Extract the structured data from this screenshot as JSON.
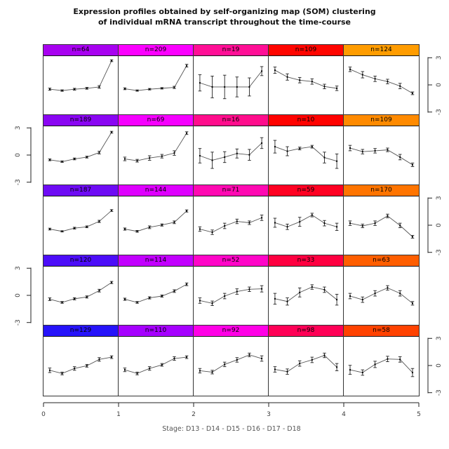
{
  "title": {
    "line1": "Expression profiles obtained by self-organizing map (SOM) clustering",
    "line2": "of individual mRNA transcript throughout the time-course"
  },
  "axes": {
    "x": {
      "tick_labels": [
        "0",
        "1",
        "2",
        "3",
        "4",
        "5"
      ],
      "label": "Stage: D13 - D14 - D15 - D16 - D17 - D18"
    },
    "y": {
      "tick_labels": [
        "3",
        "0",
        "-3"
      ],
      "tick_values": [
        3,
        0,
        -3
      ],
      "left_axis_rows": [
        2,
        4
      ],
      "right_axis_rows": [
        1,
        3,
        5
      ]
    }
  },
  "chart_data": {
    "type": "line",
    "title": "Expression profiles obtained by self-organizing map (SOM) clustering of individual mRNA transcript throughout the time-course",
    "xlabel": "Stage: D13 - D14 - D15 - D16 - D17 - D18",
    "stages": [
      "D13",
      "D14",
      "D15",
      "D16",
      "D17",
      "D18"
    ],
    "ylim": [
      -3,
      3
    ],
    "xlim": [
      0,
      5
    ],
    "grid_rows": 5,
    "grid_cols": 5,
    "error_bars": true,
    "cells": [
      {
        "row": 1,
        "col": 1,
        "n": 64,
        "label": "n=64",
        "color": "#A801F0",
        "values": [
          -0.4,
          -0.55,
          -0.4,
          -0.3,
          -0.15,
          2.75
        ],
        "errors": [
          0.12,
          0.08,
          0.1,
          0.1,
          0.15,
          0.1
        ]
      },
      {
        "row": 1,
        "col": 2,
        "n": 209,
        "label": "n=209",
        "color": "#FB00FF",
        "values": [
          -0.35,
          -0.55,
          -0.4,
          -0.3,
          -0.2,
          2.2
        ],
        "errors": [
          0.1,
          0.07,
          0.08,
          0.08,
          0.12,
          0.15
        ]
      },
      {
        "row": 1,
        "col": 3,
        "n": 19,
        "label": "n=19",
        "color": "#FF0F96",
        "values": [
          0.3,
          -0.15,
          -0.15,
          -0.15,
          -0.15,
          1.6
        ],
        "errors": [
          0.9,
          1.2,
          1.3,
          1.1,
          1.0,
          0.5
        ]
      },
      {
        "row": 1,
        "col": 4,
        "n": 109,
        "label": "n=109",
        "color": "#FF0500",
        "values": [
          1.7,
          0.95,
          0.6,
          0.45,
          -0.1,
          -0.3
        ],
        "errors": [
          0.35,
          0.35,
          0.3,
          0.3,
          0.25,
          0.25
        ]
      },
      {
        "row": 1,
        "col": 5,
        "n": 124,
        "label": "n=124",
        "color": "#FF9C00",
        "values": [
          1.8,
          1.2,
          0.75,
          0.45,
          -0.05,
          -0.85
        ],
        "errors": [
          0.25,
          0.35,
          0.3,
          0.25,
          0.3,
          0.15
        ]
      },
      {
        "row": 2,
        "col": 1,
        "n": 189,
        "label": "n=189",
        "color": "#8A06F2",
        "values": [
          -0.45,
          -0.65,
          -0.35,
          -0.15,
          0.35,
          2.6
        ],
        "errors": [
          0.1,
          0.08,
          0.1,
          0.1,
          0.15,
          0.1
        ]
      },
      {
        "row": 2,
        "col": 2,
        "n": 69,
        "label": "n=69",
        "color": "#F500FF",
        "values": [
          -0.35,
          -0.55,
          -0.25,
          -0.05,
          0.3,
          2.5
        ],
        "errors": [
          0.2,
          0.15,
          0.25,
          0.2,
          0.25,
          0.15
        ]
      },
      {
        "row": 2,
        "col": 3,
        "n": 16,
        "label": "n=16",
        "color": "#FF0D8C",
        "values": [
          0.0,
          -0.5,
          -0.15,
          0.25,
          0.1,
          1.4
        ],
        "errors": [
          0.8,
          0.9,
          0.6,
          0.5,
          0.6,
          0.6
        ]
      },
      {
        "row": 2,
        "col": 4,
        "n": 10,
        "label": "n=10",
        "color": "#FF0200",
        "values": [
          1.0,
          0.5,
          0.8,
          1.0,
          -0.2,
          -0.6
        ],
        "errors": [
          0.7,
          0.5,
          0.15,
          0.15,
          0.6,
          0.8
        ]
      },
      {
        "row": 2,
        "col": 5,
        "n": 109,
        "label": "n=109",
        "color": "#FF8A00",
        "values": [
          0.85,
          0.45,
          0.55,
          0.65,
          -0.15,
          -1.0
        ],
        "errors": [
          0.3,
          0.25,
          0.25,
          0.2,
          0.3,
          0.2
        ]
      },
      {
        "row": 3,
        "col": 1,
        "n": 187,
        "label": "n=187",
        "color": "#6E0BF4",
        "values": [
          -0.35,
          -0.6,
          -0.25,
          -0.1,
          0.5,
          1.7
        ],
        "errors": [
          0.1,
          0.07,
          0.1,
          0.1,
          0.12,
          0.1
        ]
      },
      {
        "row": 3,
        "col": 2,
        "n": 144,
        "label": "n=144",
        "color": "#DE00FF",
        "values": [
          -0.35,
          -0.6,
          -0.15,
          0.1,
          0.4,
          1.65
        ],
        "errors": [
          0.12,
          0.1,
          0.15,
          0.12,
          0.15,
          0.12
        ]
      },
      {
        "row": 3,
        "col": 3,
        "n": 71,
        "label": "n=71",
        "color": "#FF09B2",
        "values": [
          -0.35,
          -0.7,
          0.0,
          0.5,
          0.35,
          0.9
        ],
        "errors": [
          0.25,
          0.25,
          0.3,
          0.25,
          0.2,
          0.3
        ]
      },
      {
        "row": 3,
        "col": 4,
        "n": 59,
        "label": "n=59",
        "color": "#FF0122",
        "values": [
          0.35,
          -0.1,
          0.45,
          1.2,
          0.3,
          -0.1
        ],
        "errors": [
          0.5,
          0.3,
          0.5,
          0.2,
          0.3,
          0.4
        ]
      },
      {
        "row": 3,
        "col": 5,
        "n": 170,
        "label": "n=170",
        "color": "#FF7400",
        "values": [
          0.3,
          0.0,
          0.3,
          1.1,
          0.05,
          -1.2
        ],
        "errors": [
          0.25,
          0.2,
          0.25,
          0.2,
          0.25,
          0.15
        ]
      },
      {
        "row": 4,
        "col": 1,
        "n": 120,
        "label": "n=120",
        "color": "#4C0DF8",
        "values": [
          -0.35,
          -0.7,
          -0.3,
          -0.1,
          0.6,
          1.5
        ],
        "errors": [
          0.15,
          0.1,
          0.12,
          0.12,
          0.15,
          0.12
        ]
      },
      {
        "row": 4,
        "col": 2,
        "n": 114,
        "label": "n=114",
        "color": "#C200FF",
        "values": [
          -0.35,
          -0.7,
          -0.2,
          0.0,
          0.55,
          1.3
        ],
        "errors": [
          0.12,
          0.1,
          0.12,
          0.12,
          0.15,
          0.15
        ]
      },
      {
        "row": 4,
        "col": 3,
        "n": 52,
        "label": "n=52",
        "color": "#FF05C8",
        "values": [
          -0.5,
          -0.8,
          0.0,
          0.5,
          0.75,
          0.8
        ],
        "errors": [
          0.3,
          0.25,
          0.3,
          0.3,
          0.25,
          0.35
        ]
      },
      {
        "row": 4,
        "col": 4,
        "n": 33,
        "label": "n=33",
        "color": "#FF0040",
        "values": [
          -0.3,
          -0.6,
          0.4,
          1.0,
          0.7,
          -0.4
        ],
        "errors": [
          0.6,
          0.4,
          0.5,
          0.25,
          0.3,
          0.6
        ]
      },
      {
        "row": 4,
        "col": 5,
        "n": 63,
        "label": "n=63",
        "color": "#FF5E00",
        "values": [
          0.0,
          -0.4,
          0.3,
          0.9,
          0.3,
          -0.8
        ],
        "errors": [
          0.3,
          0.3,
          0.3,
          0.25,
          0.3,
          0.2
        ]
      },
      {
        "row": 5,
        "col": 1,
        "n": 129,
        "label": "n=129",
        "color": "#2613FA",
        "values": [
          -0.45,
          -0.8,
          -0.25,
          0.05,
          0.75,
          1.0
        ],
        "errors": [
          0.25,
          0.15,
          0.2,
          0.15,
          0.2,
          0.15
        ]
      },
      {
        "row": 5,
        "col": 2,
        "n": 110,
        "label": "n=110",
        "color": "#A600FF",
        "values": [
          -0.4,
          -0.8,
          -0.25,
          0.15,
          0.85,
          1.0
        ],
        "errors": [
          0.2,
          0.15,
          0.2,
          0.15,
          0.2,
          0.15
        ]
      },
      {
        "row": 5,
        "col": 3,
        "n": 92,
        "label": "n=92",
        "color": "#FF00E6",
        "values": [
          -0.5,
          -0.65,
          0.2,
          0.7,
          1.25,
          0.85
        ],
        "errors": [
          0.25,
          0.2,
          0.25,
          0.25,
          0.2,
          0.3
        ]
      },
      {
        "row": 5,
        "col": 4,
        "n": 98,
        "label": "n=98",
        "color": "#FF0056",
        "values": [
          -0.35,
          -0.6,
          0.3,
          0.7,
          1.2,
          -0.1
        ],
        "errors": [
          0.3,
          0.3,
          0.3,
          0.3,
          0.25,
          0.4
        ]
      },
      {
        "row": 5,
        "col": 5,
        "n": 58,
        "label": "n=58",
        "color": "#FF4200",
        "values": [
          -0.4,
          -0.7,
          0.2,
          0.8,
          0.75,
          -0.7
        ],
        "errors": [
          0.5,
          0.3,
          0.35,
          0.3,
          0.3,
          0.45
        ]
      }
    ]
  }
}
